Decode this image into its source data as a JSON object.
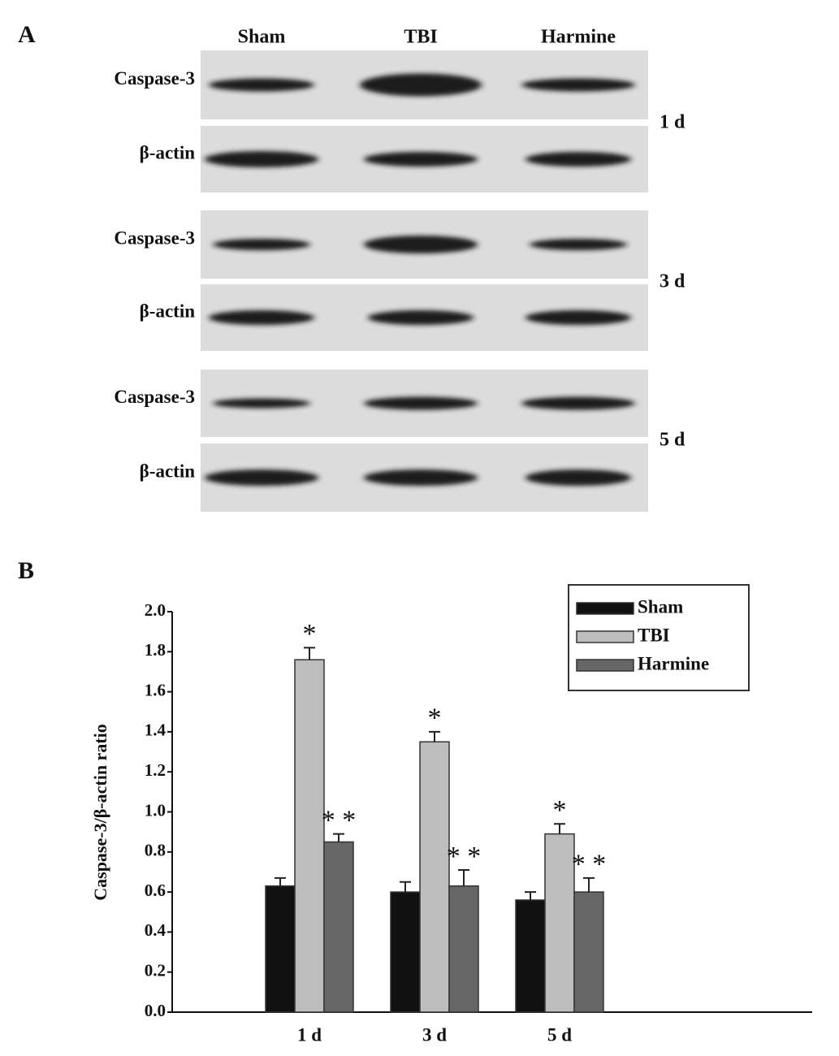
{
  "panel_a": {
    "label": "A",
    "lanes": [
      "Sham",
      "TBI",
      "Harmine"
    ],
    "groups": [
      {
        "time": "1 d",
        "rows": [
          "Caspase-3",
          "β-actin"
        ]
      },
      {
        "time": "3 d",
        "rows": [
          "Caspase-3",
          "β-actin"
        ]
      },
      {
        "time": "5 d",
        "rows": [
          "Caspase-3",
          "β-actin"
        ]
      }
    ]
  },
  "panel_b": {
    "label": "B"
  },
  "chart_data": {
    "type": "bar",
    "ylabel": "Caspase-3/β-actin ratio",
    "categories": [
      "1 d",
      "3 d",
      "5 d"
    ],
    "series": [
      {
        "name": "Sham",
        "color": "#111111",
        "values": [
          0.63,
          0.6,
          0.56
        ],
        "errors": [
          0.04,
          0.05,
          0.04
        ]
      },
      {
        "name": "TBI",
        "color": "#bdbdbd",
        "values": [
          1.76,
          1.35,
          0.89
        ],
        "errors": [
          0.06,
          0.05,
          0.05
        ],
        "annotations": [
          "*",
          "*",
          "*"
        ]
      },
      {
        "name": "Harmine",
        "color": "#666666",
        "values": [
          0.85,
          0.63,
          0.6
        ],
        "errors": [
          0.04,
          0.08,
          0.07
        ],
        "annotations": [
          "* *",
          "* *",
          "* *"
        ]
      }
    ],
    "ylim": [
      0,
      2
    ],
    "yticks": [
      {
        "value": 0,
        "label": "0.0"
      },
      0.2,
      0.4,
      0.6,
      0.8,
      {
        "value": 1,
        "label": "1.0"
      },
      1.2,
      1.4,
      1.6,
      1.8,
      {
        "value": 2,
        "label": "2.0"
      }
    ],
    "legend": "upper right"
  }
}
